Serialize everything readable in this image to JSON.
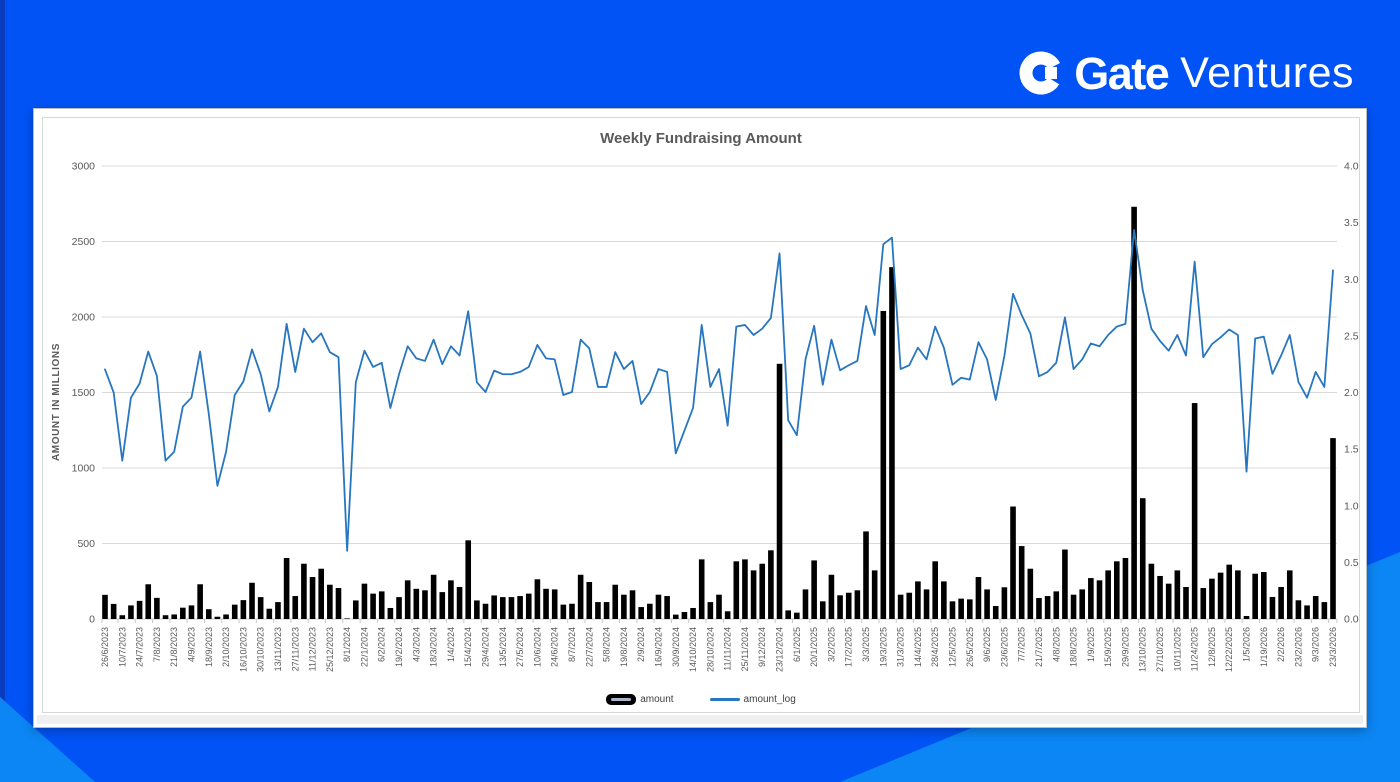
{
  "header": {
    "brand": "Gate",
    "product": "Ventures",
    "logo_icon": "gate-g-ring"
  },
  "colors": {
    "background_blue": "#0153f6",
    "accent_light_blue": "#0c86f4",
    "bar_color": "#000000",
    "line_color": "#2776bf",
    "text_gray": "#595959",
    "gridline": "#d9d9d9"
  },
  "chart_data": {
    "type": "bar",
    "combo": "bar + line (secondary log axis)",
    "title": "Weekly Fundraising Amount",
    "ylabel": "AMOUNT IN MILLIONS",
    "xlabel": "",
    "grid": true,
    "legend_position": "bottom",
    "left_axis_ticks": [
      0,
      500,
      1000,
      1500,
      2000,
      2500,
      3000
    ],
    "right_axis_ticks": [
      "0.0",
      "0.5",
      "1.0",
      "1.5",
      "2.0",
      "2.5",
      "3.0",
      "3.5",
      "4.0"
    ],
    "left_ylim": [
      0,
      3000
    ],
    "right_ylim": [
      0.0,
      4.0
    ],
    "weeks_per_x_label": 2,
    "x_tick_labels": [
      "26/6/2023",
      "10/7/2023",
      "24/7/2023",
      "7/8/2023",
      "21/8/2023",
      "4/9/2023",
      "18/9/2023",
      "2/10/2023",
      "16/10/2023",
      "30/10/2023",
      "13/11/2023",
      "27/11/2023",
      "11/12/2023",
      "25/12/2023",
      "8/1/2024",
      "22/1/2024",
      "6/2/2024",
      "19/2/2024",
      "4/3/2024",
      "18/3/2024",
      "1/4/2024",
      "15/4/2024",
      "29/4/2024",
      "13/5/2024",
      "27/5/2024",
      "10/6/2024",
      "24/6/2024",
      "8/7/2024",
      "22/7/2024",
      "5/8/2024",
      "19/8/2024",
      "2/9/2024",
      "16/9/2024",
      "30/9/2024",
      "14/10/2024",
      "28/10/2024",
      "11/11/2024",
      "25/11/2024",
      "9/12/2024",
      "23/12/2024",
      "6/1/2025",
      "20/1/2025",
      "3/2/2025",
      "17/2/2025",
      "3/3/2025",
      "19/3/2025",
      "31/3/2025",
      "14/4/2025",
      "28/4/2025",
      "12/5/2025",
      "26/5/2025",
      "9/6/2025",
      "23/6/2025",
      "7/7/2025",
      "21/7/2025",
      "4/8/2025",
      "18/8/2025",
      "1/9/2025",
      "15/9/2025",
      "29/9/2025",
      "13/10/2025",
      "27/10/2025",
      "10/11/2025",
      "11/24/2025",
      "12/8/2025",
      "12/22/2025",
      "1/5/2026",
      "1/19/2026",
      "2/2/2026",
      "23/2/2026",
      "9/3/2026",
      "23/3/2026"
    ],
    "series": [
      {
        "name": "amount",
        "type": "bar",
        "axis": "left",
        "color": "#000000",
        "values": [
          160,
          100,
          25,
          90,
          120,
          230,
          140,
          25,
          30,
          75,
          90,
          230,
          65,
          15,
          30,
          95,
          125,
          240,
          145,
          68,
          112,
          404,
          152,
          366,
          278,
          333,
          227,
          205,
          4,
          123,
          234,
          168,
          183,
          73,
          145,
          256,
          200,
          190,
          293,
          178,
          256,
          212,
          521,
          123,
          101,
          156,
          145,
          145,
          152,
          168,
          263,
          200,
          196,
          95,
          101,
          293,
          245,
          112,
          112,
          227,
          161,
          190,
          79,
          101,
          161,
          152,
          29,
          46,
          73,
          395,
          112,
          161,
          51,
          382,
          395,
          322,
          366,
          455,
          1690,
          57,
          42,
          196,
          388,
          117,
          293,
          157,
          174,
          190,
          580,
          322,
          2040,
          2330,
          161,
          174,
          249,
          196,
          382,
          249,
          117,
          135,
          130,
          278,
          196,
          86,
          210,
          745,
          483,
          333,
          139,
          152,
          183,
          460,
          161,
          196,
          271,
          256,
          322,
          382,
          404,
          2730,
          800,
          366,
          285,
          234,
          322,
          212,
          1430,
          205,
          267,
          307,
          360,
          322,
          20,
          300,
          311,
          146,
          212,
          322,
          124,
          90,
          152,
          112,
          1198
        ]
      },
      {
        "name": "amount_log",
        "type": "line",
        "axis": "right",
        "color": "#2776bf",
        "derived_from": "log10(amount)"
      }
    ]
  }
}
